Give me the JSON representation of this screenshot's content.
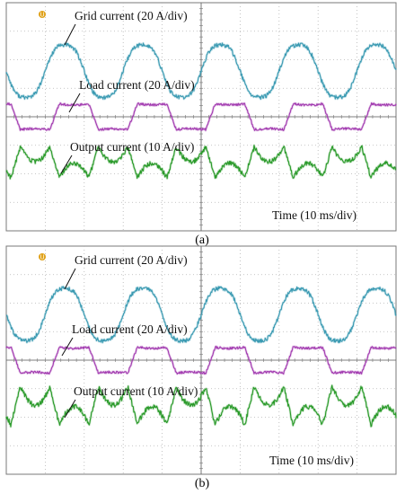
{
  "chart_data": [
    {
      "type": "line",
      "caption": "(a)",
      "time_label": "Time (10 ms/div)",
      "x": {
        "unit": "div",
        "range": [
          0,
          10
        ]
      },
      "y": {
        "unit": "div",
        "range": [
          -4,
          4
        ]
      },
      "grid": true,
      "series": [
        {
          "name": "Grid current (20 A/div)",
          "color": "#3a9ab2",
          "waveform": "sine",
          "offset_div": 1.6,
          "amplitude_div": 1.0,
          "period_div": 2.0,
          "phase": -0.5,
          "noise_div": 0.07
        },
        {
          "name": "Load current (20 A/div)",
          "color": "#a23bb0",
          "waveform": "quasi-square",
          "offset_div": 0.0,
          "amplitude_div": 0.45,
          "period_div": 2.0,
          "phase": -0.62,
          "noise_div": 0.04
        },
        {
          "name": "Output current (10 A/div)",
          "color": "#2a9a2a",
          "waveform": "compensation",
          "offset_div": -1.6,
          "amplitude_div": 0.45,
          "period_div": 2.0,
          "phase": -0.62,
          "noise_div": 0.08
        }
      ]
    },
    {
      "type": "line",
      "caption": "(b)",
      "time_label": "Time (10 ms/div)",
      "x": {
        "unit": "div",
        "range": [
          0,
          10
        ]
      },
      "y": {
        "unit": "div",
        "range": [
          -4,
          4
        ]
      },
      "grid": true,
      "series": [
        {
          "name": "Grid current (20 A/div)",
          "color": "#3a9ab2",
          "waveform": "sine",
          "offset_div": 1.6,
          "amplitude_div": 1.0,
          "period_div": 2.0,
          "phase": -0.5,
          "noise_div": 0.07
        },
        {
          "name": "Load current (20 A/div)",
          "color": "#a23bb0",
          "waveform": "quasi-square",
          "offset_div": 0.0,
          "amplitude_div": 0.45,
          "period_div": 2.0,
          "phase": -0.62,
          "noise_div": 0.04
        },
        {
          "name": "Output current (10 A/div)",
          "color": "#2a9a2a",
          "waveform": "compensation",
          "offset_div": -1.6,
          "amplitude_div": 0.55,
          "period_div": 2.0,
          "phase": -0.62,
          "noise_div": 0.09
        }
      ]
    }
  ],
  "trigger_marker": {
    "color": "#e0a21a"
  }
}
